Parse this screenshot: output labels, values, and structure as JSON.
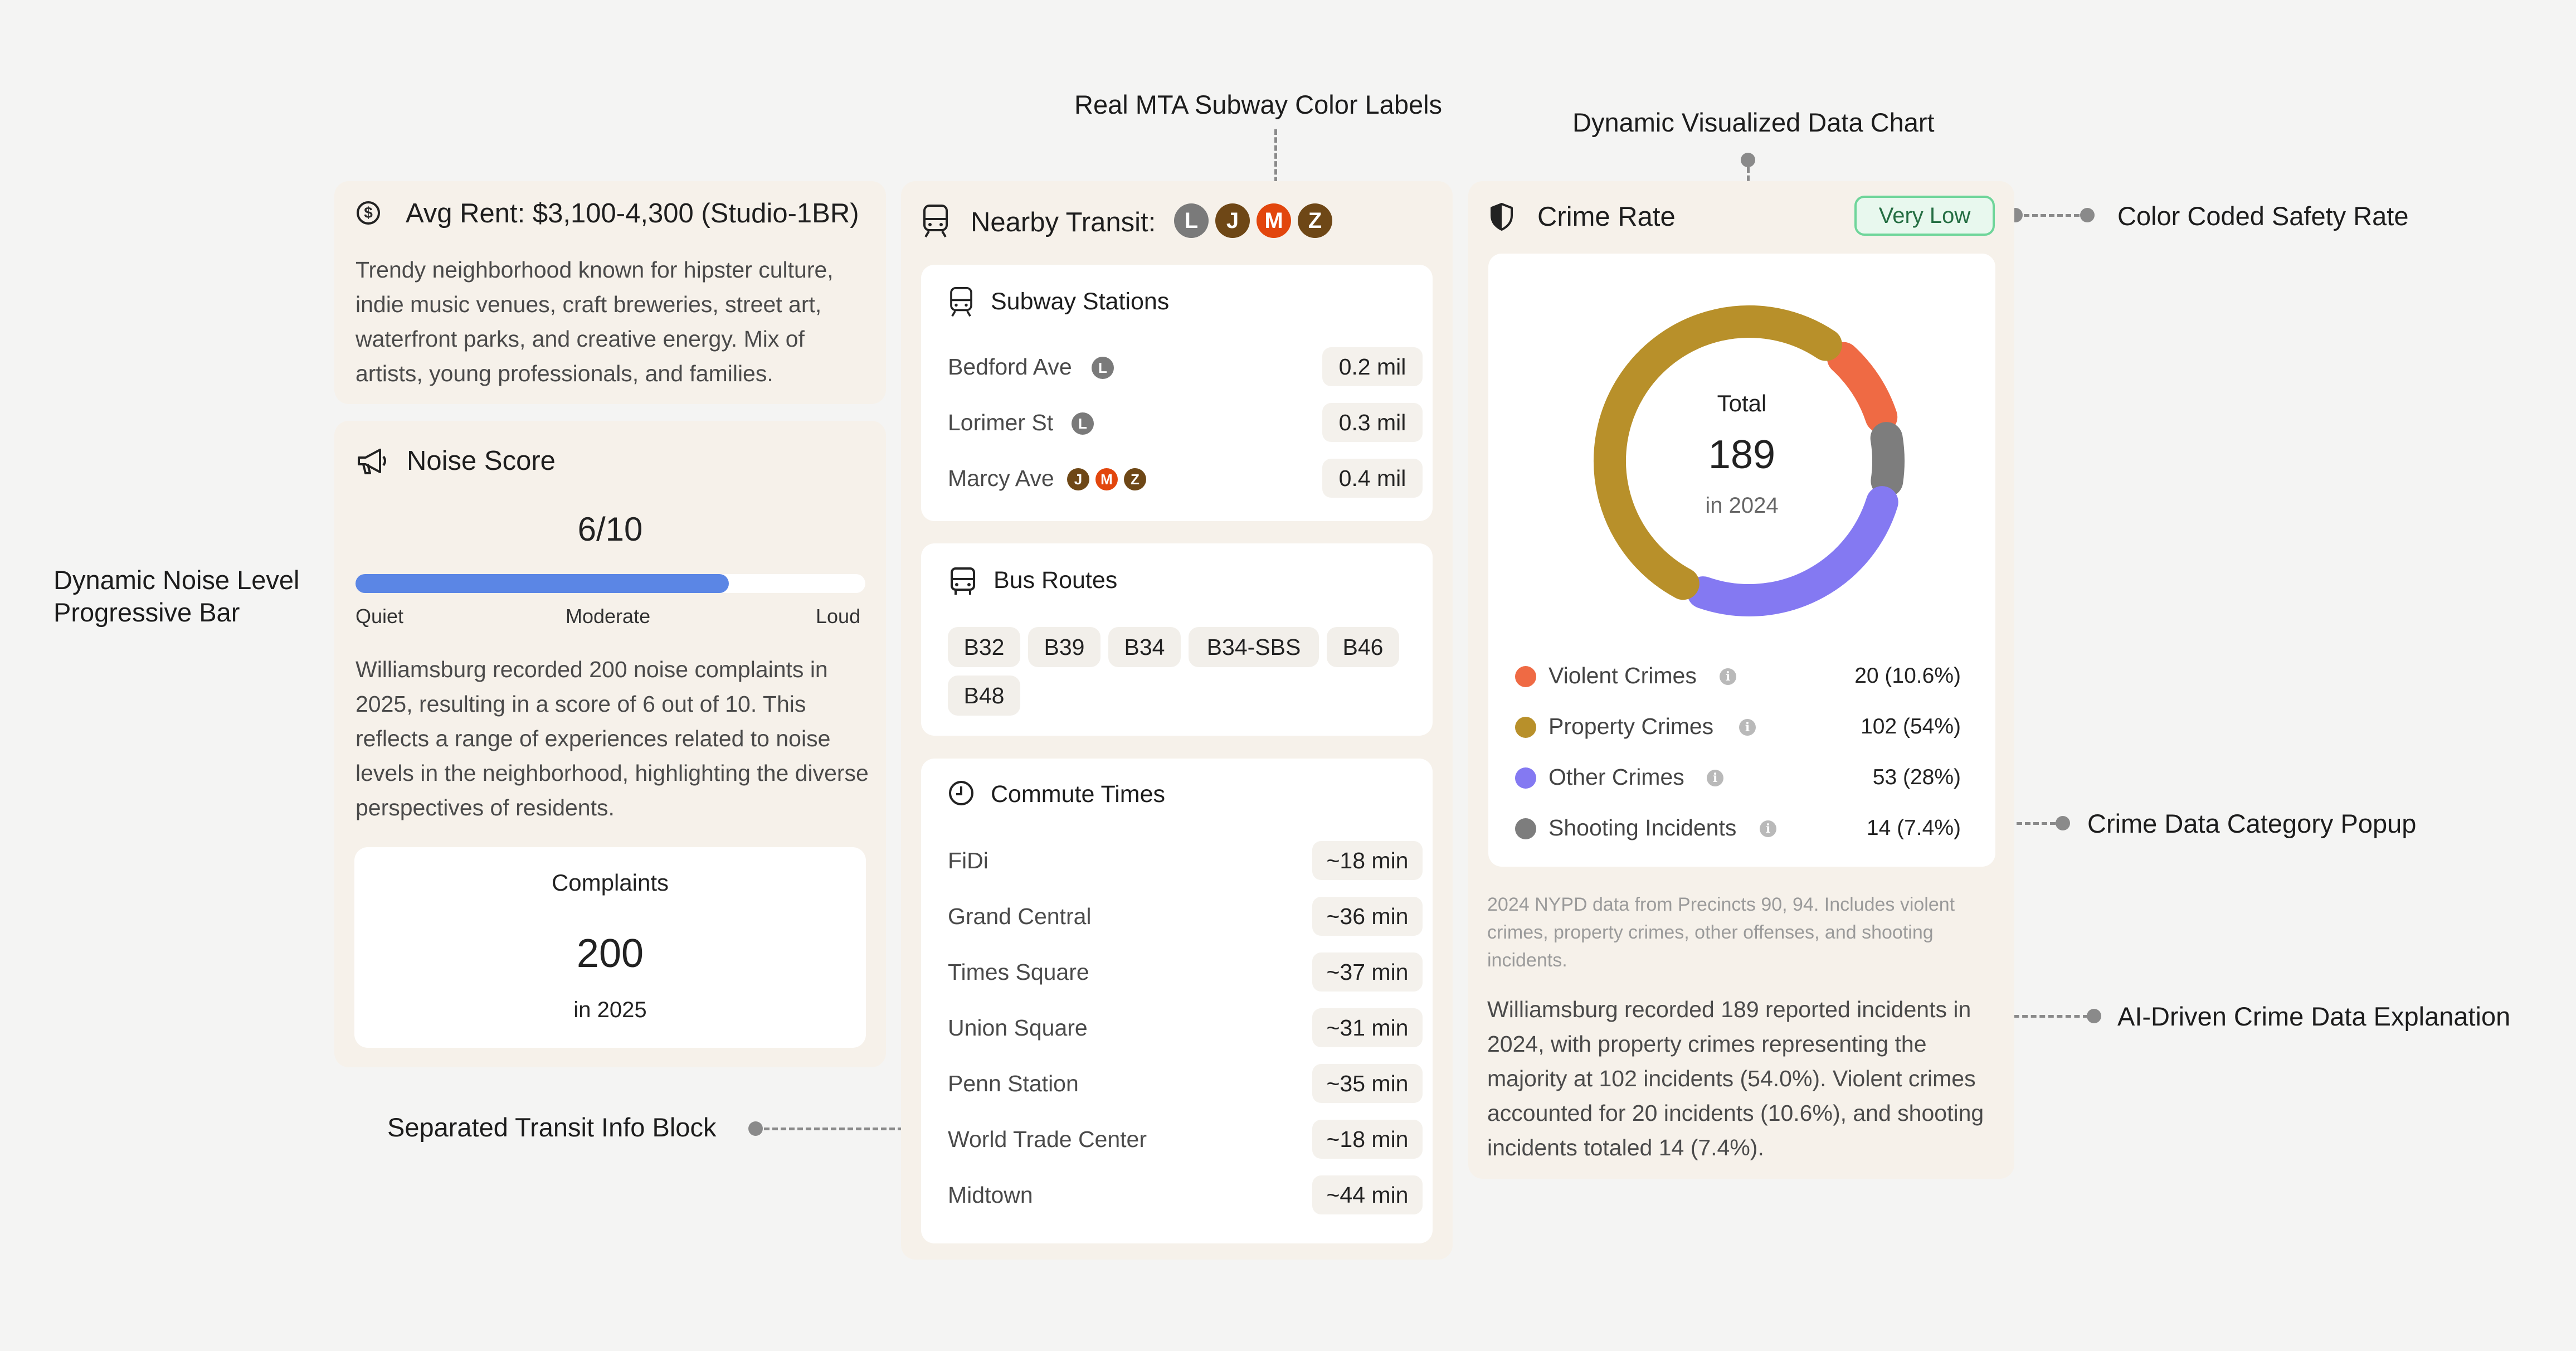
{
  "annotations": {
    "mta_labels": "Real MTA Subway Color Labels",
    "data_chart": "Dynamic Visualized Data Chart",
    "safety_rate": "Color Coded Safety Rate",
    "noise_bar_line1": "Dynamic Noise Level",
    "noise_bar_line2": "Progressive Bar",
    "category_popup": "Crime Data Category Popup",
    "ai_explanation": "AI-Driven Crime Data Explanation",
    "transit_block": "Separated Transit Info Block"
  },
  "rent": {
    "title": "Avg Rent: $3,100-4,300 (Studio-1BR)",
    "description": "Trendy neighborhood known for hipster culture, indie music venues, craft breweries, street art, waterfront parks, and creative energy. Mix of artists, young professionals, and families."
  },
  "noise": {
    "title": "Noise Score",
    "score": "6/10",
    "level": 0.6,
    "labels": {
      "quiet": "Quiet",
      "moderate": "Moderate",
      "loud": "Loud"
    },
    "description": "Williamsburg recorded 200 noise complaints in 2025, resulting in a score of 6 out of 10. This reflects a range of experiences related to noise levels in the neighborhood, highlighting the diverse perspectives of residents.",
    "complaints_label": "Complaints",
    "complaints_value": "200",
    "complaints_year": "in 2025",
    "bar_color": "#5b86e5"
  },
  "transit": {
    "title": "Nearby Transit:",
    "lines": [
      {
        "letter": "L",
        "color": "#7a7a7a"
      },
      {
        "letter": "J",
        "color": "#6e4716"
      },
      {
        "letter": "M",
        "color": "#e2460d"
      },
      {
        "letter": "Z",
        "color": "#6e4716"
      }
    ],
    "subway": {
      "title": "Subway Stations",
      "stations": [
        {
          "name": "Bedford Ave",
          "lines": [
            "L"
          ],
          "distance": "0.2 mil"
        },
        {
          "name": "Lorimer St",
          "lines": [
            "L"
          ],
          "distance": "0.3 mil"
        },
        {
          "name": "Marcy Ave",
          "lines": [
            "J",
            "M",
            "Z"
          ],
          "distance": "0.4 mil"
        }
      ]
    },
    "bus": {
      "title": "Bus Routes",
      "routes": [
        "B32",
        "B39",
        "B34",
        "B34-SBS",
        "B46",
        "B48"
      ]
    },
    "commute": {
      "title": "Commute Times",
      "items": [
        {
          "place": "FiDi",
          "time": "~18 min"
        },
        {
          "place": "Grand Central",
          "time": "~36 min"
        },
        {
          "place": "Times Square",
          "time": "~37 min"
        },
        {
          "place": "Union Square",
          "time": "~31 min"
        },
        {
          "place": "Penn Station",
          "time": "~35 min"
        },
        {
          "place": "World Trade Center",
          "time": "~18 min"
        },
        {
          "place": "Midtown",
          "time": "~44 min"
        }
      ]
    }
  },
  "crime": {
    "title": "Crime Rate",
    "rating": "Very Low",
    "rating_color": "#2f9a5a",
    "total_label": "Total",
    "total_value": "189",
    "total_year": "in 2024",
    "source_note": "2024 NYPD data from Precincts 90, 94. Includes violent crimes, property crimes, other offenses, and shooting incidents.",
    "explanation": "Williamsburg recorded 189 reported incidents in 2024, with property crimes representing the majority at 102 incidents (54.0%). Violent crimes accounted for 20 incidents (10.6%), and shooting incidents totaled 14 (7.4%).",
    "legend": [
      {
        "label": "Violent Crimes",
        "value": "20 (10.6%)",
        "color": "#ef6a44"
      },
      {
        "label": "Property Crimes",
        "value": "102 (54%)",
        "color": "#b8902a"
      },
      {
        "label": "Other Crimes",
        "value": "53 (28%)",
        "color": "#8479f2"
      },
      {
        "label": "Shooting Incidents",
        "value": "14 (7.4%)",
        "color": "#7d7d7d"
      }
    ]
  },
  "chart_data": {
    "type": "pie",
    "title": "",
    "categories": [
      "Violent Crimes",
      "Property Crimes",
      "Other Crimes",
      "Shooting Incidents"
    ],
    "values": [
      20,
      102,
      53,
      14
    ],
    "colors": [
      "#ef6a44",
      "#b8902a",
      "#8479f2",
      "#7d7d7d"
    ],
    "donut": true
  }
}
